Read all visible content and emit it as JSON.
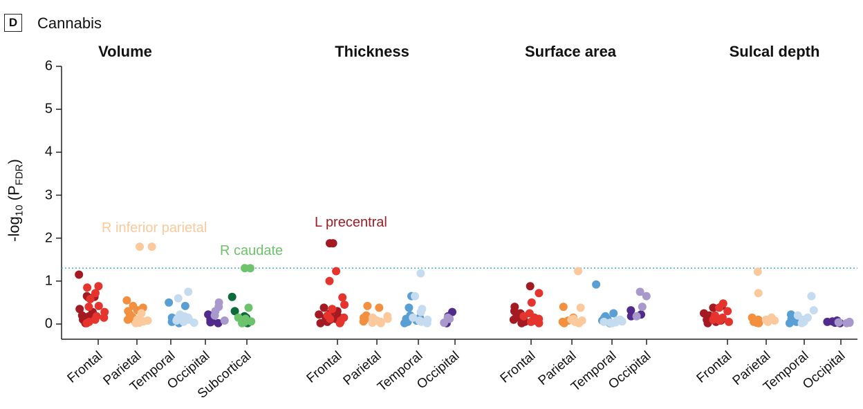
{
  "panel": {
    "letter": "D",
    "title": "Cannabis"
  },
  "chart_data": {
    "type": "scatter",
    "ylabel": "-log10 (PFDR)",
    "ylabel_parts": {
      "main": "-log",
      "sub1": "10",
      "mid": " (P",
      "sub2": "FDR",
      "end": ")"
    },
    "ylim": [
      0,
      6
    ],
    "yticks": [
      0,
      1,
      2,
      3,
      4,
      5,
      6
    ],
    "threshold": 1.3,
    "threshold_color": "#3bb3d9",
    "colors": {
      "Frontal_L": "#a31a22",
      "Frontal_R": "#e5342d",
      "Parietal_L": "#f39040",
      "Parietal_R": "#fbc99b",
      "Temporal_L": "#5a9fd4",
      "Temporal_R": "#c5dcf0",
      "Occipital_L": "#512b8b",
      "Occipital_R": "#a898cc",
      "Subcortical_L": "#0c6b3a",
      "Subcortical_R": "#6cc36b"
    },
    "facets": [
      {
        "title": "Volume",
        "groups": [
          {
            "region": "Frontal",
            "left": [
              0.65,
              0.62,
              0.35,
              0.2,
              0.12,
              0.05,
              1.15,
              0.63,
              0.18,
              0.02,
              0.1,
              0.28
            ],
            "right": [
              0.88,
              0.85,
              0.72,
              0.58,
              0.42,
              0.4,
              0.18,
              0.1,
              0.05,
              0.02,
              0.15,
              0.28
            ]
          },
          {
            "region": "Parietal",
            "left": [
              0.55,
              0.42,
              0.38,
              0.3,
              0.16,
              0.05,
              0.32,
              0.22,
              0.1
            ],
            "right": [
              1.8,
              0.25,
              0.1,
              0.06,
              0.03,
              0.02,
              0.08,
              0.04,
              0.12
            ]
          },
          {
            "region": "Temporal",
            "left": [
              0.5,
              0.42,
              0.15,
              0.1,
              0.08,
              0.05,
              0.02,
              0.12,
              0.06
            ],
            "right": [
              0.75,
              0.6,
              0.22,
              0.18,
              0.12,
              0.08,
              0.05,
              0.1,
              0.15,
              0.03
            ]
          },
          {
            "region": "Occipital",
            "left": [
              0.22,
              0.1,
              0.06,
              0.04,
              0.02
            ],
            "right": [
              0.5,
              0.4,
              0.3,
              0.2,
              0.08
            ]
          },
          {
            "region": "Subcortical",
            "left": [
              0.63,
              0.3,
              0.18,
              0.1,
              0.05,
              0.02,
              0.15,
              0.08
            ],
            "right": [
              1.3,
              0.38,
              0.15,
              0.1,
              0.05,
              0.02,
              0.12,
              0.06
            ]
          }
        ]
      },
      {
        "title": "Thickness",
        "groups": [
          {
            "region": "Frontal",
            "left": [
              1.88,
              0.38,
              0.3,
              0.22,
              0.15,
              0.1,
              0.05,
              0.02,
              0.18,
              0.08,
              0.12,
              0.25
            ],
            "right": [
              1.23,
              1.0,
              0.62,
              0.45,
              0.35,
              0.2,
              0.12,
              0.08,
              0.05,
              0.02,
              0.15
            ]
          },
          {
            "region": "Parietal",
            "left": [
              0.42,
              0.38,
              0.2,
              0.15,
              0.1,
              0.06,
              0.12
            ],
            "right": [
              0.18,
              0.12,
              0.1,
              0.05,
              0.03,
              0.08,
              0.02,
              0.15
            ]
          },
          {
            "region": "Temporal",
            "left": [
              0.65,
              0.38,
              0.2,
              0.15,
              0.1,
              0.05,
              0.02,
              0.08,
              0.12
            ],
            "right": [
              1.18,
              0.65,
              0.35,
              0.28,
              0.15,
              0.1,
              0.05,
              0.02,
              0.08
            ]
          },
          {
            "region": "Occipital",
            "left": [
              0.28,
              0.18,
              0.02
            ],
            "right": [
              0.15,
              0.12,
              0.03
            ]
          }
        ]
      },
      {
        "title": "Surface area",
        "groups": [
          {
            "region": "Frontal",
            "left": [
              0.88,
              0.4,
              0.3,
              0.22,
              0.15,
              0.1,
              0.05,
              0.02,
              0.25,
              0.12
            ],
            "right": [
              0.72,
              0.5,
              0.25,
              0.18,
              0.12,
              0.08,
              0.05,
              0.02,
              0.15
            ]
          },
          {
            "region": "Parietal",
            "left": [
              0.4,
              0.15,
              0.1,
              0.05,
              0.02,
              0.08
            ],
            "right": [
              1.23,
              0.38,
              0.12,
              0.08,
              0.05,
              0.02,
              0.1
            ]
          },
          {
            "region": "Temporal",
            "left": [
              0.92,
              0.25,
              0.18,
              0.12,
              0.08,
              0.05,
              0.02,
              0.15,
              0.1
            ],
            "right": [
              0.1,
              0.08,
              0.05,
              0.03,
              0.02,
              0.06,
              0.04
            ]
          },
          {
            "region": "Occipital",
            "left": [
              0.32,
              0.22,
              0.18
            ],
            "right": [
              0.75,
              0.65,
              0.4,
              0.18
            ]
          }
        ]
      },
      {
        "title": "Sulcal depth",
        "groups": [
          {
            "region": "Frontal",
            "left": [
              0.42,
              0.38,
              0.25,
              0.15,
              0.1,
              0.05,
              0.02,
              0.12,
              0.2,
              0.08
            ],
            "right": [
              0.48,
              0.38,
              0.3,
              0.2,
              0.12,
              0.08,
              0.05,
              0.15,
              0.1
            ]
          },
          {
            "region": "Parietal",
            "left": [
              0.15,
              0.1,
              0.05,
              0.03,
              0.02,
              0.08
            ],
            "right": [
              1.22,
              0.72,
              0.15,
              0.1,
              0.05,
              0.08
            ]
          },
          {
            "region": "Temporal",
            "left": [
              0.22,
              0.15,
              0.1,
              0.05,
              0.02,
              0.12
            ],
            "right": [
              0.65,
              0.32,
              0.2,
              0.15,
              0.1,
              0.05,
              0.02
            ]
          },
          {
            "region": "Occipital",
            "left": [
              0.08,
              0.06,
              0.05,
              0.03,
              0.02
            ],
            "right": [
              0.05,
              0.04,
              0.03,
              0.02
            ]
          }
        ]
      }
    ],
    "annotations": [
      {
        "text": "R inferior parietal",
        "facet": 0,
        "region": "Parietal",
        "value": 1.8,
        "color": "#fbc99b"
      },
      {
        "text": "R caudate",
        "facet": 0,
        "region": "Subcortical",
        "value": 1.3,
        "color": "#6cc36b"
      },
      {
        "text": "L precentral",
        "facet": 1,
        "region": "Frontal",
        "value": 1.88,
        "color": "#a31a22"
      }
    ]
  }
}
